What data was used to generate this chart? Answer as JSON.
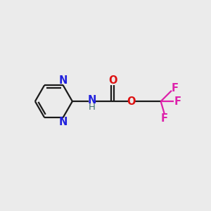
{
  "bg_color": "#ebebeb",
  "bond_color": "#1a1a1a",
  "N_color": "#2020dd",
  "O_color": "#dd1111",
  "F_color": "#dd20aa",
  "H_color": "#407070",
  "line_width": 1.6,
  "font_size": 10.5,
  "fig_size": [
    3.0,
    3.0
  ],
  "dpi": 100,
  "xlim": [
    0,
    10
  ],
  "ylim": [
    0,
    10
  ]
}
